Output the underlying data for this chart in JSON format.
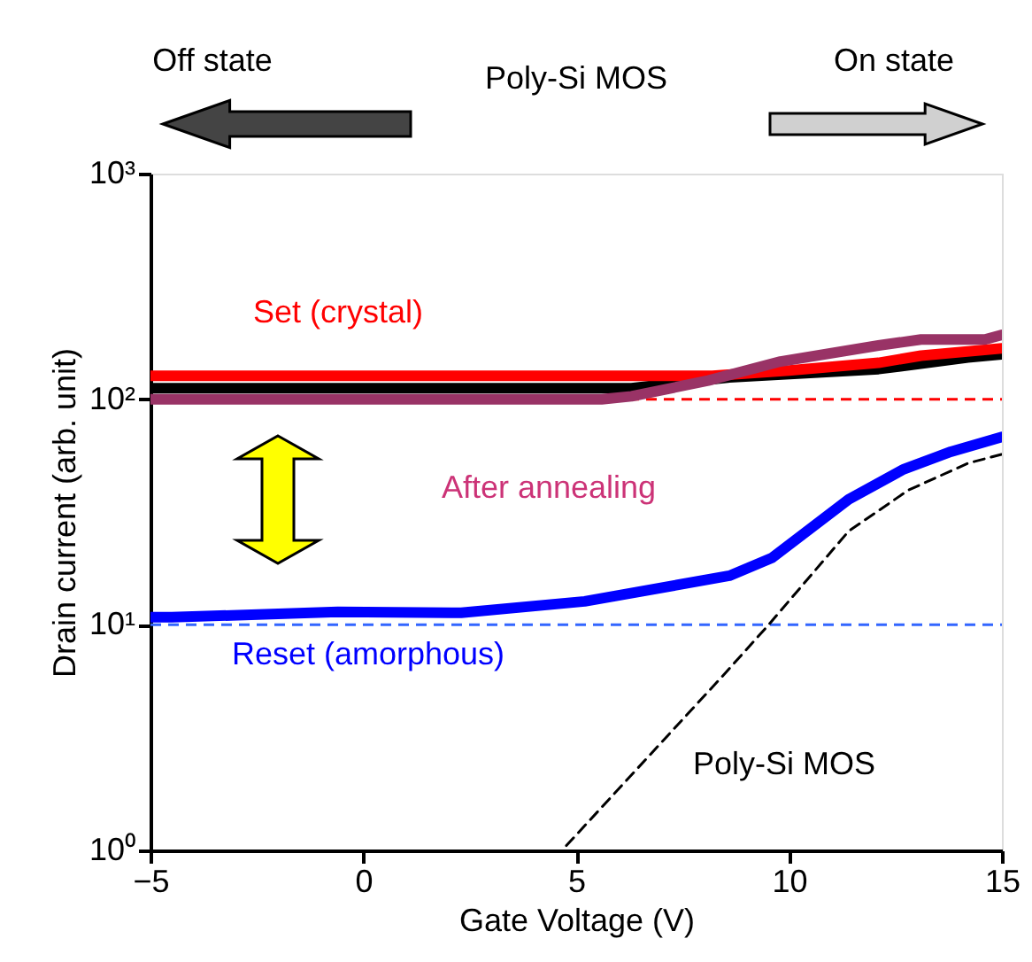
{
  "chart_data": {
    "type": "line",
    "title": "Poly-Si MOS",
    "xlabel": "Gate Voltage (V)",
    "ylabel": "Drain current (arb. unit)",
    "log": "y",
    "xlim": [
      -5,
      15
    ],
    "xticks": [
      -5,
      0,
      5,
      10,
      15
    ],
    "ylim": [
      1,
      1000
    ],
    "yticks": [
      {
        "value": 1,
        "label": "10⁰"
      },
      {
        "value": 10,
        "label": "10¹"
      },
      {
        "value": 100,
        "label": "10²"
      },
      {
        "value": 1000,
        "label": "10³"
      }
    ],
    "grid": false,
    "marker": "none",
    "series": [
      {
        "color": "#000000",
        "x": [
          -5,
          6.3,
          8.6,
          12.1,
          14.2,
          15
        ],
        "values": [
          112,
          112,
          125,
          136,
          153,
          158
        ]
      },
      {
        "color": "#ff0000",
        "x": [
          -5,
          8.2,
          10,
          12.1,
          13.1,
          15
        ],
        "values": [
          127,
          127,
          134,
          145,
          156,
          168
        ]
      },
      {
        "color": "#993366",
        "x": [
          -5,
          5.6,
          6.3,
          8.1,
          9.8,
          12.1,
          13.1,
          14.6,
          15
        ],
        "values": [
          100,
          100,
          103,
          121,
          147,
          173,
          184,
          184,
          193
        ]
      },
      {
        "color": "#0000ff",
        "x": [
          -5,
          -4.5,
          -0.6,
          2.3,
          5.2,
          8.6,
          9.6,
          11.4,
          12.7,
          13.8,
          15
        ],
        "values": [
          10.8,
          10.8,
          11.4,
          11.3,
          12.7,
          16.5,
          19.8,
          36,
          49,
          58.5,
          68
        ]
      },
      {
        "color": "#000000",
        "line_style": "dashed",
        "x": [
          4.77,
          8.5,
          9.5,
          11.4,
          12.8,
          14.2,
          15
        ],
        "values": [
          1.05,
          6.1,
          9.9,
          26,
          39.5,
          52,
          57
        ]
      }
    ],
    "ref_lines": [
      {
        "axis": "y",
        "value": 100,
        "color": "#ff0000",
        "line_style": "dashed"
      },
      {
        "axis": "y",
        "value": 10,
        "color": "#3366ff",
        "line_style": "dashed"
      }
    ],
    "annotations": [
      "Set (crystal)",
      "After annealing",
      "Reset (amorphous)",
      "Poly-Si MOS",
      "Off state",
      "On state"
    ]
  }
}
